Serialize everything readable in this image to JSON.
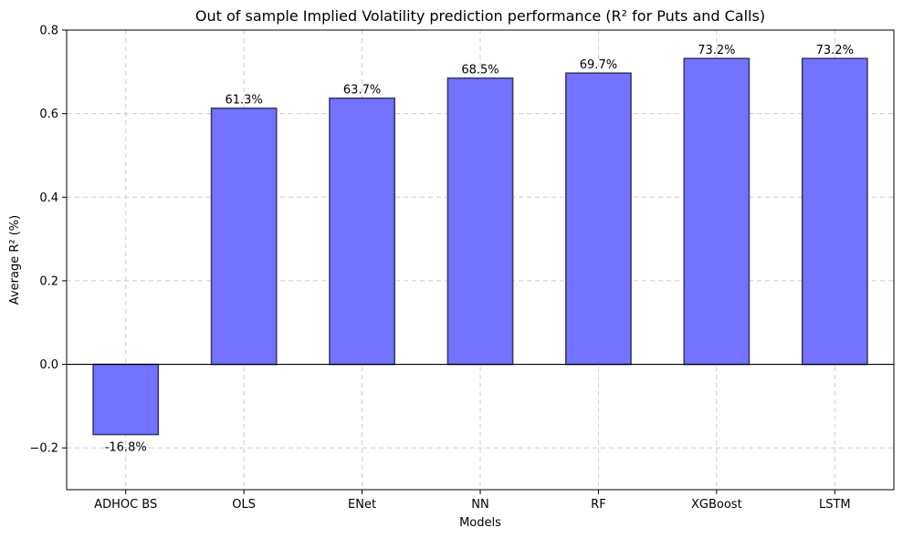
{
  "chart_data": {
    "type": "bar",
    "title": "Out of sample Implied Volatility prediction performance (R² for Puts and Calls)",
    "xlabel": "Models",
    "ylabel": "Average R² (%)",
    "categories": [
      "ADHOC BS",
      "OLS",
      "ENet",
      "NN",
      "RF",
      "XGBoost",
      "LSTM"
    ],
    "values": [
      -0.168,
      0.613,
      0.637,
      0.685,
      0.697,
      0.732,
      0.732
    ],
    "data_labels": [
      "-16.8%",
      "61.3%",
      "63.7%",
      "68.5%",
      "69.7%",
      "73.2%",
      "73.2%"
    ],
    "ylim": [
      -0.3,
      0.8
    ],
    "yticks": [
      -0.2,
      0.0,
      0.2,
      0.4,
      0.6,
      0.8
    ],
    "ytick_labels": [
      "−0.2",
      "0.0",
      "0.2",
      "0.4",
      "0.6",
      "0.8"
    ],
    "grid": true,
    "bar_color": "#7373ff",
    "bar_edge_color": "#3a3a6e"
  }
}
